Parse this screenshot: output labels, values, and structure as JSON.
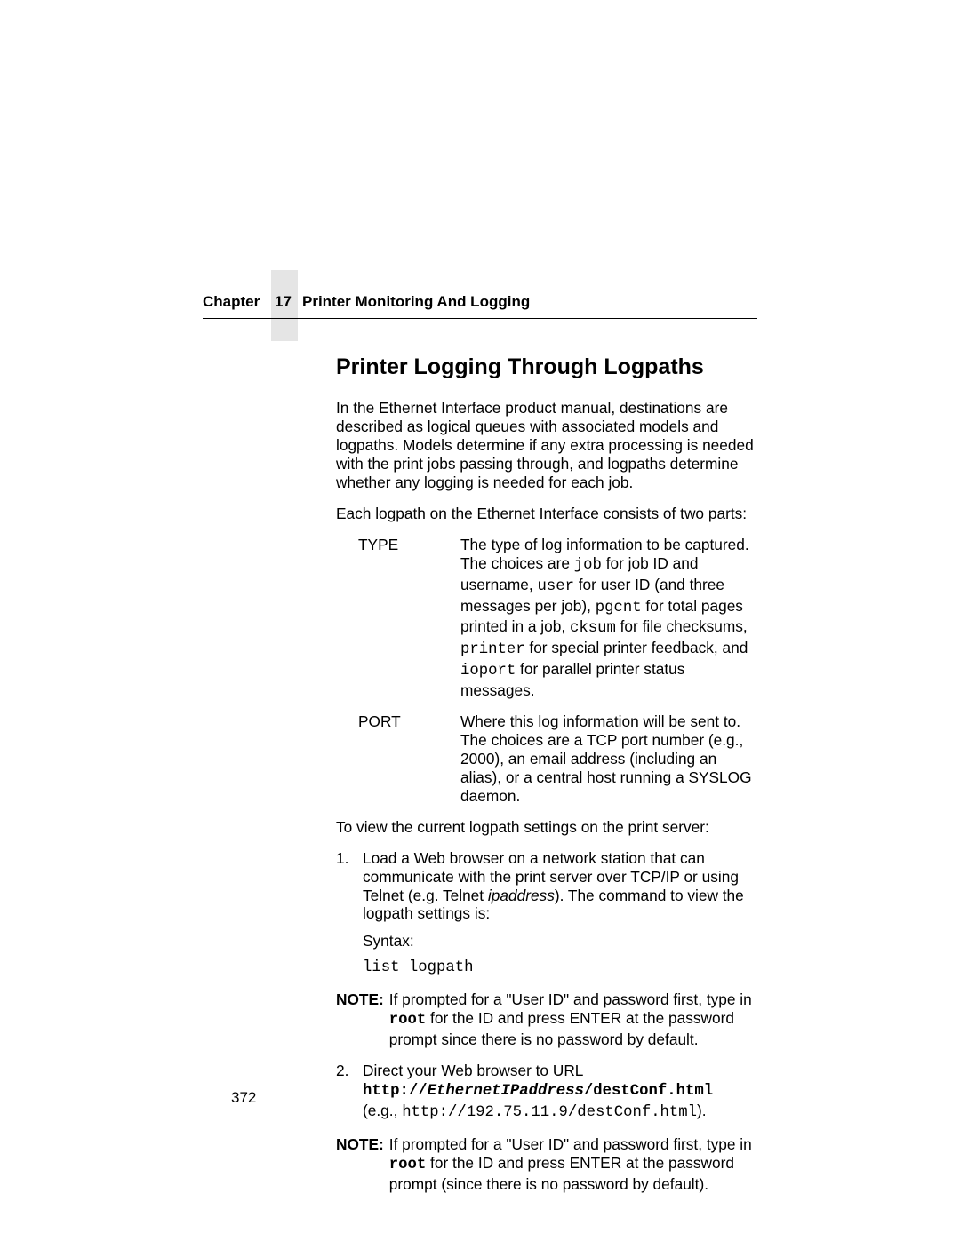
{
  "header": {
    "chapter_label": "Chapter",
    "chapter_num": "17",
    "title": "Printer Monitoring And Logging"
  },
  "section": {
    "heading": "Printer Logging Through Logpaths",
    "intro1": "In the Ethernet Interface product manual, destinations are described as logical queues with associated models and logpaths. Models determine if any extra processing is needed with the print jobs passing through, and logpaths determine whether any logging is needed for each job.",
    "intro2": "Each logpath on the Ethernet Interface consists of two parts:",
    "defs": {
      "type_label": "TYPE",
      "type_pre1": "The type of log information to be captured. The choices are ",
      "type_code1": "job",
      "type_mid1": " for job ID and username, ",
      "type_code2": "user",
      "type_mid2": " for user ID (and three messages per job), ",
      "type_code3": "pgcnt",
      "type_mid3": " for total pages printed in a job, ",
      "type_code4": "cksum",
      "type_mid4": " for file checksums, ",
      "type_code5": "printer",
      "type_mid5": " for special printer feedback, and ",
      "type_code6": "ioport",
      "type_post": " for parallel printer status messages.",
      "port_label": "PORT",
      "port_text": "Where this log information will be sent to. The choices are a TCP port number (e.g., 2000), an email address (including an alias), or a central host running a SYSLOG daemon."
    },
    "view_intro": "To view the current logpath settings on the print server:",
    "step1": {
      "num": "1.",
      "pre": "Load a Web browser on a network station that can communicate with the print server over TCP/IP or using Telnet (e.g. Telnet ",
      "ip_italic": "ipaddress",
      "post": "). The command to view the logpath settings is:",
      "syntax_label": "Syntax:",
      "code": "list logpath"
    },
    "note1": {
      "label": "NOTE:",
      "pre": "If prompted for a \"User ID\" and password first, type in ",
      "root": "root",
      "post": " for the ID and press ENTER at the password prompt since there is no password by default."
    },
    "step2": {
      "num": "2.",
      "line1": "Direct your Web browser to URL",
      "url_pre": "http://",
      "url_var": "EthernetIPaddress",
      "url_post": "/destConf.html",
      "eg_pre": "(e.g., ",
      "eg_url": "http://192.75.11.9/destConf.html",
      "eg_post": ")."
    },
    "note2": {
      "label": "NOTE:",
      "pre": "If prompted for a \"User ID\" and password first, type in ",
      "root": "root",
      "post": " for the ID and press ENTER at the password prompt (since there is no password by default)."
    }
  },
  "page_number": "372"
}
